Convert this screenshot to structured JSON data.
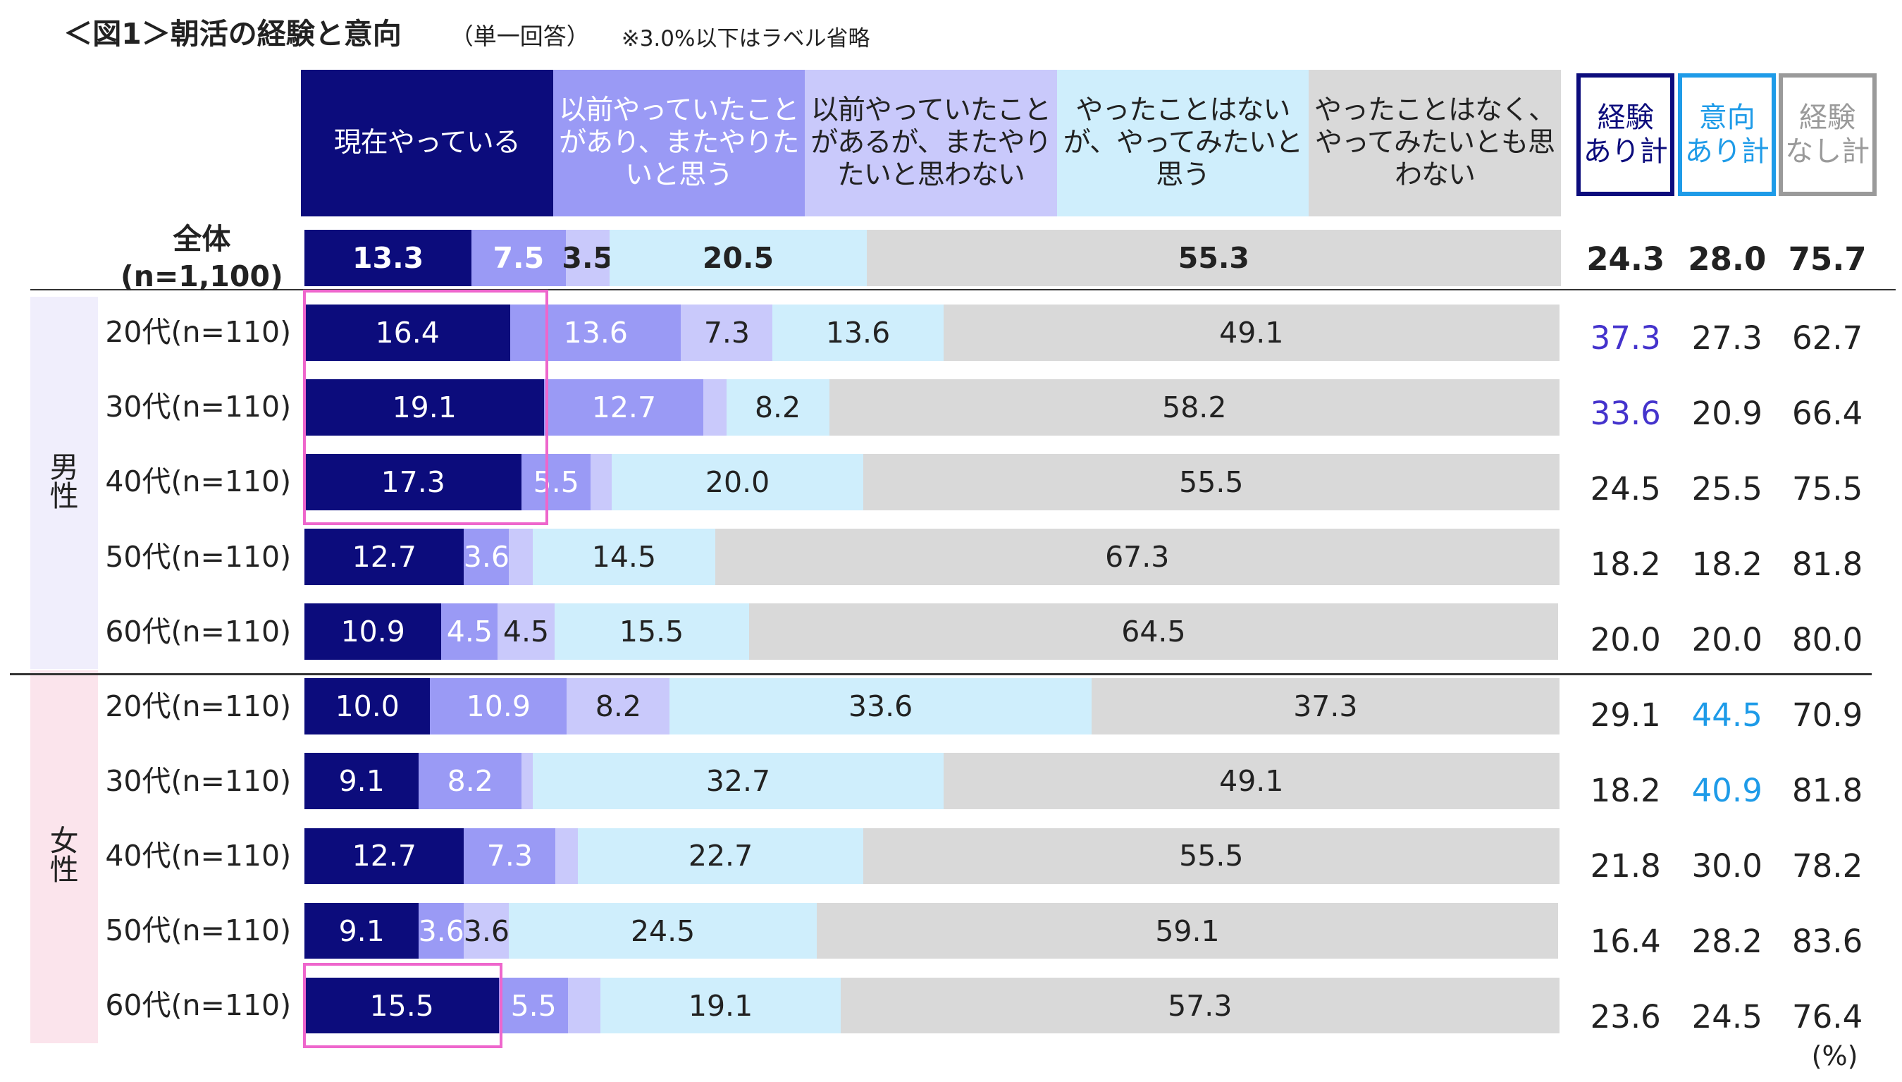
{
  "chart_data": {
    "type": "bar",
    "orientation": "horizontal",
    "stacked": true,
    "title": "＜図1＞朝活の経験と意向",
    "subtitle": "（単一回答）",
    "note": "※3.0%以下はラベル省略",
    "unit_note": "(%)",
    "xlim": [
      0,
      100
    ],
    "categories": [
      "全体\n(n=1,100)",
      "20代(n=110)",
      "30代(n=110)",
      "40代(n=110)",
      "50代(n=110)",
      "60代(n=110)",
      "20代(n=110)",
      "30代(n=110)",
      "40代(n=110)",
      "50代(n=110)",
      "60代(n=110)"
    ],
    "groups": [
      {
        "name": "男\n性",
        "color": "#f0eefc",
        "rows": [
          1,
          2,
          3,
          4,
          5
        ]
      },
      {
        "name": "女\n性",
        "color": "#fbe4ec",
        "rows": [
          6,
          7,
          8,
          9,
          10
        ]
      }
    ],
    "series": [
      {
        "name": "現在やっている",
        "color": "#0c0c7c",
        "label_color": "#ffffff",
        "values": [
          13.3,
          16.4,
          19.1,
          17.3,
          12.7,
          10.9,
          10.0,
          9.1,
          12.7,
          9.1,
          15.5
        ],
        "value_labels": [
          "13.3",
          "16.4",
          "19.1",
          "17.3",
          "12.7",
          "10.9",
          "10.0",
          "9.1",
          "12.7",
          "9.1",
          "15.5"
        ]
      },
      {
        "name": "以前やっていたことがあり、またやりたいと思う",
        "color": "#9a9af5",
        "label_color": "#ffffff",
        "values": [
          7.5,
          13.6,
          12.7,
          5.5,
          3.6,
          4.5,
          10.9,
          8.2,
          7.3,
          3.6,
          5.5
        ],
        "value_labels": [
          "7.5",
          "13.6",
          "12.7",
          "5.5",
          "3.6",
          "4.5",
          "10.9",
          "8.2",
          "7.3",
          "3.6",
          "5.5"
        ]
      },
      {
        "name": "以前やっていたことがあるが、またやりたいと思わない",
        "color": "#c9c9fb",
        "label_color": "#222222",
        "values": [
          3.5,
          7.3,
          1.8,
          1.7,
          1.9,
          4.5,
          8.2,
          0.9,
          1.8,
          3.6,
          2.6
        ],
        "value_labels": [
          "3.5",
          "7.3",
          null,
          null,
          null,
          "4.5",
          "8.2",
          null,
          null,
          "3.6",
          null
        ]
      },
      {
        "name": "やったことはないが、やってみたいと思う",
        "color": "#cfeefc",
        "label_color": "#222222",
        "values": [
          20.5,
          13.6,
          8.2,
          20.0,
          14.5,
          15.5,
          33.6,
          32.7,
          22.7,
          24.5,
          19.1
        ],
        "value_labels": [
          "20.5",
          "13.6",
          "8.2",
          "20.0",
          "14.5",
          "15.5",
          "33.6",
          "32.7",
          "22.7",
          "24.5",
          "19.1"
        ]
      },
      {
        "name": "やったことはなく、やってみたいとも思わない",
        "color": "#d9d9d9",
        "label_color": "#222222",
        "values": [
          55.3,
          49.1,
          58.2,
          55.5,
          67.3,
          64.5,
          37.3,
          49.1,
          55.5,
          59.1,
          57.3
        ],
        "value_labels": [
          "55.3",
          "49.1",
          "58.2",
          "55.5",
          "67.3",
          "64.5",
          "37.3",
          "49.1",
          "55.5",
          "59.1",
          "57.3"
        ]
      }
    ],
    "totals": [
      {
        "name": "経験\nあり計",
        "color": "#0c0c7c",
        "text_color": "#0c0c7c",
        "values": [
          "24.3",
          "37.3",
          "33.6",
          "24.5",
          "18.2",
          "20.0",
          "29.1",
          "18.2",
          "21.8",
          "16.4",
          "23.6"
        ],
        "value_colors": [
          null,
          "#4433cc",
          "#4433cc",
          null,
          null,
          null,
          null,
          null,
          null,
          null,
          null
        ]
      },
      {
        "name": "意向\nあり計",
        "color": "#1e9be8",
        "text_color": "#1e9be8",
        "values": [
          "28.0",
          "27.3",
          "20.9",
          "25.5",
          "18.2",
          "20.0",
          "44.5",
          "40.9",
          "30.0",
          "28.2",
          "24.5"
        ],
        "value_colors": [
          null,
          null,
          null,
          null,
          null,
          null,
          "#1e9be8",
          "#1e9be8",
          null,
          null,
          null
        ]
      },
      {
        "name": "経験\nなし計",
        "color": "#9a9a9a",
        "text_color": "#9a9a9a",
        "values": [
          "75.7",
          "62.7",
          "66.4",
          "75.5",
          "81.8",
          "80.0",
          "70.9",
          "81.8",
          "78.2",
          "83.6",
          "76.4"
        ],
        "value_colors": [
          null,
          null,
          null,
          null,
          null,
          null,
          null,
          null,
          null,
          null,
          null
        ]
      }
    ]
  }
}
